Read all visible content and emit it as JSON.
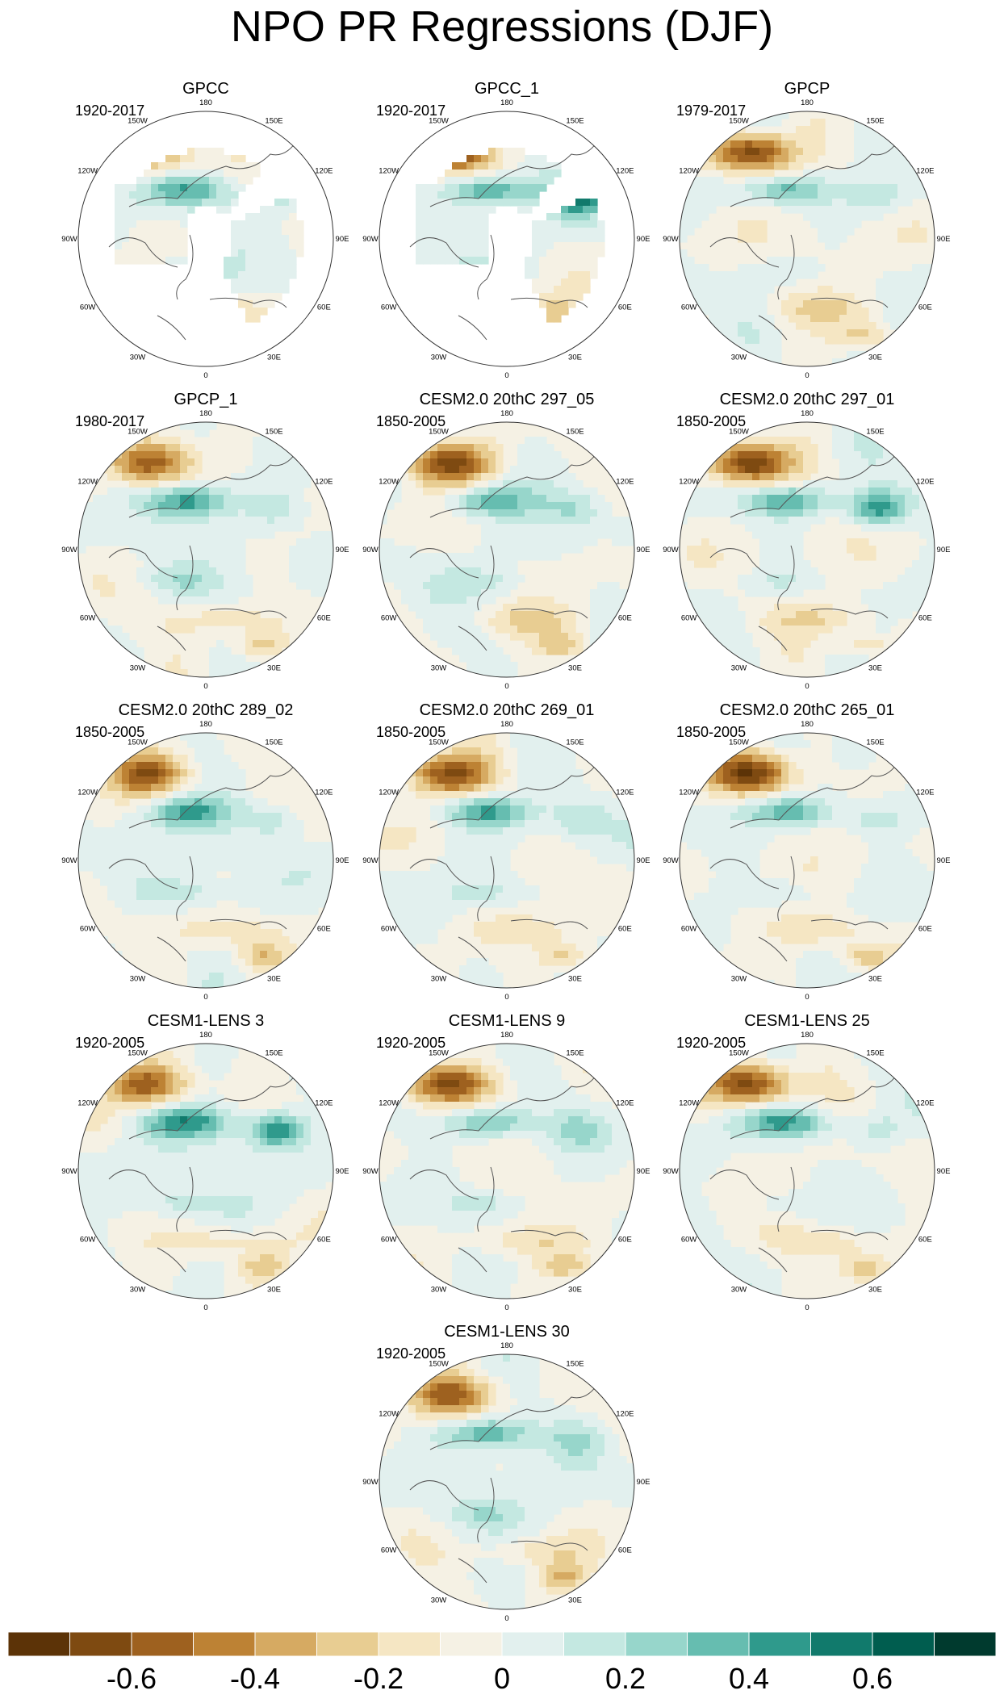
{
  "title": "NPO PR Regressions (DJF)",
  "lon_labels": [
    "180",
    "150E",
    "120E",
    "90E",
    "60E",
    "30E",
    "0",
    "30W",
    "60W",
    "90W",
    "120W",
    "150W"
  ],
  "colorbar": {
    "colors": [
      "#5c3307",
      "#7e4a11",
      "#9e611f",
      "#bd8234",
      "#d6aa62",
      "#e8cd92",
      "#f5e6c3",
      "#f5f1e4",
      "#e2f0ee",
      "#c4e8e1",
      "#97d6cb",
      "#66bdb0",
      "#2f9a8c",
      "#117a6c",
      "#005d4f",
      "#003a2e"
    ],
    "tick_labels": [
      "-0.6",
      "-0.4",
      "-0.2",
      "0",
      "0.2",
      "0.4",
      "0.6"
    ],
    "tick_values": [
      -0.6,
      -0.4,
      -0.2,
      0,
      0.2,
      0.4,
      0.6
    ],
    "range": [
      -0.8,
      0.8
    ]
  },
  "panels": [
    {
      "title": "GPCC",
      "period": "1920-2017",
      "land_only": true
    },
    {
      "title": "GPCC_1",
      "period": "1920-2017",
      "land_only": true
    },
    {
      "title": "GPCP",
      "period": "1979-2017",
      "land_only": false
    },
    {
      "title": "GPCP_1",
      "period": "1980-2017",
      "land_only": false
    },
    {
      "title": "CESM2.0 20thC 297_05",
      "period": "1850-2005",
      "land_only": false
    },
    {
      "title": "CESM2.0 20thC 297_01",
      "period": "1850-2005",
      "land_only": false
    },
    {
      "title": "CESM2.0 20thC 289_02",
      "period": "1850-2005",
      "land_only": false
    },
    {
      "title": "CESM2.0 20thC 269_01",
      "period": "1850-2005",
      "land_only": false
    },
    {
      "title": "CESM2.0 20thC 265_01",
      "period": "1850-2005",
      "land_only": false
    },
    {
      "title": "CESM1-LENS 3",
      "period": "1920-2005",
      "land_only": false
    },
    {
      "title": "CESM1-LENS 9",
      "period": "1920-2005",
      "land_only": false
    },
    {
      "title": "CESM1-LENS 25",
      "period": "1920-2005",
      "land_only": false
    },
    {
      "title": "CESM1-LENS 30",
      "period": "1920-2005",
      "land_only": false
    }
  ]
}
